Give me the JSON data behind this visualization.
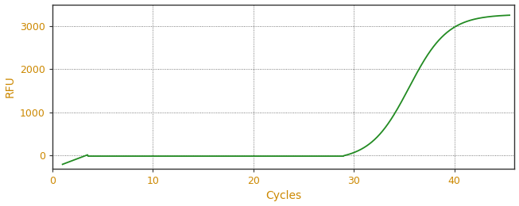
{
  "xlabel": "Cycles",
  "ylabel": "RFU",
  "line_color": "#228B22",
  "background_color": "#ffffff",
  "grid_color": "#555555",
  "tick_label_color": "#cc8800",
  "axis_label_color": "#cc8800",
  "spine_color": "#333333",
  "xlim": [
    0,
    46
  ],
  "ylim": [
    -300,
    3500
  ],
  "xticks": [
    0,
    10,
    20,
    30,
    40
  ],
  "yticks": [
    0,
    1000,
    2000,
    3000
  ],
  "sigmoid_L": 3380,
  "sigmoid_k": 0.52,
  "sigmoid_x0": 35.5,
  "x_start": 1.0,
  "x_end": 45.5,
  "early_drop_x": 1.0,
  "early_drop_y": -200,
  "early_settle_x": 3.5,
  "early_settle_y": 20,
  "baseline_y": -10
}
